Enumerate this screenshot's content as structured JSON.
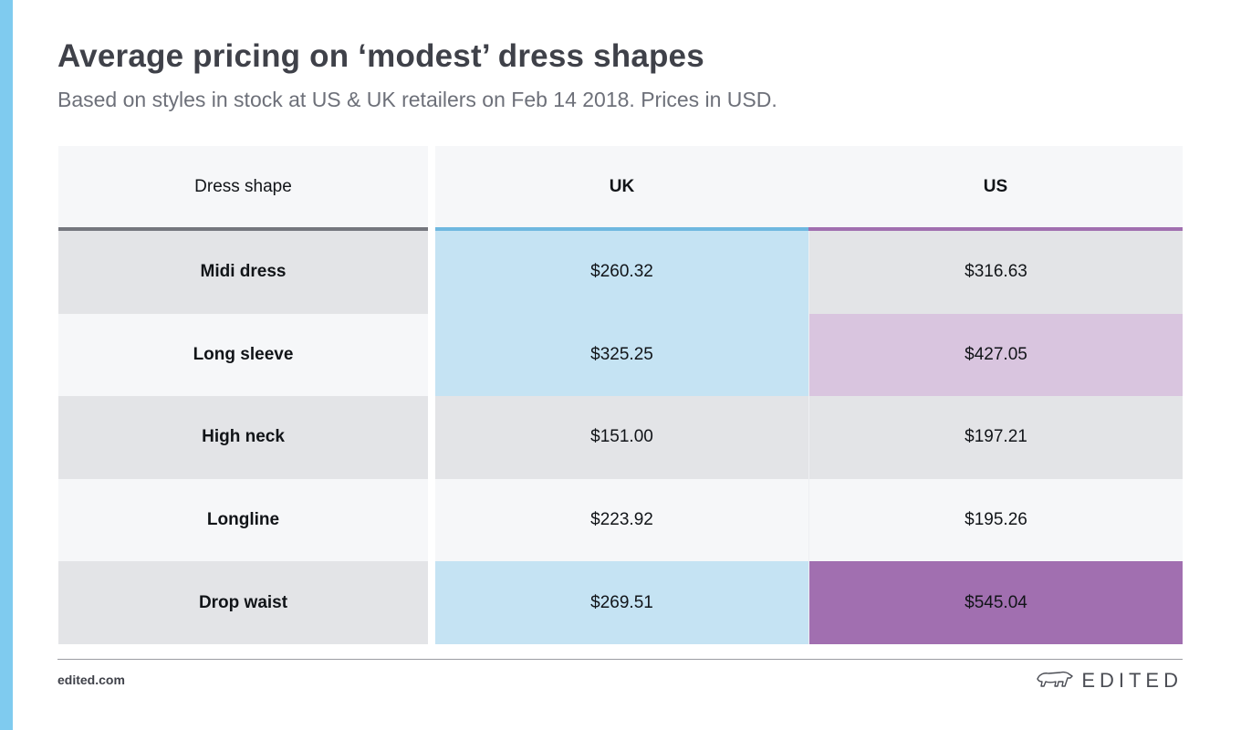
{
  "header": {
    "title": "Average pricing on ‘modest’ dress shapes",
    "subtitle": "Based on styles in stock at US & UK retailers on Feb 14 2018. Prices in USD."
  },
  "chart_data": {
    "type": "table",
    "columns": [
      "Dress shape",
      "UK",
      "US"
    ],
    "rows": [
      {
        "shape": "Midi dress",
        "uk": "$260.32",
        "us": "$316.63"
      },
      {
        "shape": "Long sleeve",
        "uk": "$325.25",
        "us": "$427.05"
      },
      {
        "shape": "High neck",
        "uk": "$151.00",
        "us": "$197.21"
      },
      {
        "shape": "Longline",
        "uk": "$223.92",
        "us": "$195.26"
      },
      {
        "shape": "Drop waist",
        "uk": "$269.51",
        "us": "$545.04"
      }
    ],
    "colors": {
      "uk": "#6fb8e0",
      "us": "#a16fb0"
    }
  },
  "footer": {
    "url": "edited.com",
    "brand": "EDITED",
    "brand_icon": "polar-bear-icon"
  },
  "colors": {
    "accent": "#7fcbef",
    "title": "#3f4149",
    "subtitle": "#6d7079"
  }
}
